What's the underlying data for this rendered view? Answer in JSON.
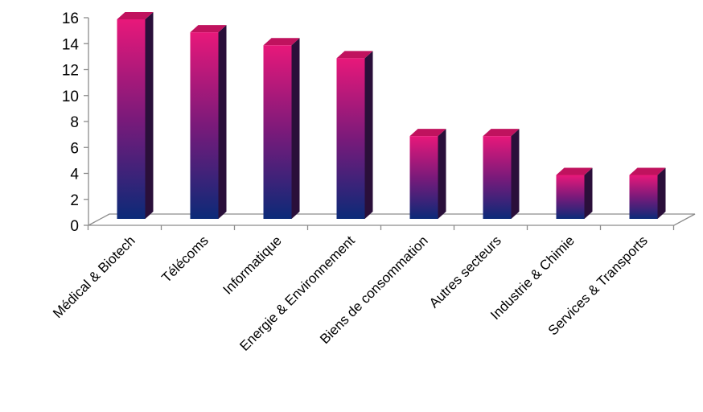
{
  "chart_data": {
    "type": "bar",
    "style": "3d-column",
    "categories": [
      "Médical & Biotech",
      "Télécoms",
      "Informatique",
      "Energie & Environnement",
      "Biens de consommation",
      "Autres secteurs",
      "Industrie & Chimie",
      "Services & Transports"
    ],
    "values": [
      16,
      15,
      14,
      13,
      7,
      7,
      4,
      4
    ],
    "yticks": [
      "0",
      "2",
      "4",
      "6",
      "8",
      "10",
      "12",
      "14",
      "16"
    ],
    "ylim": [
      0,
      16
    ],
    "grid": false,
    "legend": "none",
    "colors": {
      "bar_top_gradient": "#e8187a",
      "bar_mid_gradient": "#7a1a7a",
      "bar_bottom_gradient": "#0b2a78",
      "axis": "#8c8c8c"
    }
  }
}
